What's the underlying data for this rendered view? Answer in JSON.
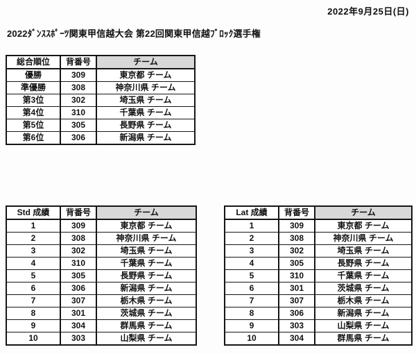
{
  "page": {
    "date": "2022年9月25日(日)",
    "title": "2022ﾀﾞﾝｽｽﾎﾟｰﾂ関東甲信越大会 第22回関東甲信越ﾌﾞﾛｯｸ選手権"
  },
  "colors": {
    "header_shade": "#d8d8d8",
    "border": "#151515",
    "background": "#fdfdfd"
  },
  "tables": {
    "overall": {
      "headers": [
        "総合順位",
        "背番号",
        "チーム"
      ],
      "rows": [
        {
          "rank": "優勝",
          "bib": "309",
          "team": "東京都 チーム"
        },
        {
          "rank": "準優勝",
          "bib": "308",
          "team": "神奈川県 チーム"
        },
        {
          "rank": "第3位",
          "bib": "302",
          "team": "埼玉県 チーム"
        },
        {
          "rank": "第4位",
          "bib": "310",
          "team": "千葉県 チーム"
        },
        {
          "rank": "第5位",
          "bib": "305",
          "team": "長野県 チーム"
        },
        {
          "rank": "第6位",
          "bib": "306",
          "team": "新潟県 チーム"
        }
      ]
    },
    "std": {
      "headers": [
        "Std 成績",
        "背番号",
        "チーム"
      ],
      "rows": [
        {
          "rank": "1",
          "bib": "309",
          "team": "東京都 チーム"
        },
        {
          "rank": "2",
          "bib": "308",
          "team": "神奈川県 チーム"
        },
        {
          "rank": "3",
          "bib": "302",
          "team": "埼玉県 チーム"
        },
        {
          "rank": "4",
          "bib": "310",
          "team": "千葉県 チーム"
        },
        {
          "rank": "5",
          "bib": "305",
          "team": "長野県 チーム"
        },
        {
          "rank": "6",
          "bib": "306",
          "team": "新潟県 チーム"
        },
        {
          "rank": "7",
          "bib": "307",
          "team": "栃木県 チーム"
        },
        {
          "rank": "8",
          "bib": "301",
          "team": "茨城県 チーム"
        },
        {
          "rank": "9",
          "bib": "304",
          "team": "群馬県 チーム"
        },
        {
          "rank": "10",
          "bib": "303",
          "team": "山梨県 チーム"
        }
      ]
    },
    "lat": {
      "headers": [
        "Lat 成績",
        "背番号",
        "チーム"
      ],
      "rows": [
        {
          "rank": "1",
          "bib": "309",
          "team": "東京都 チーム"
        },
        {
          "rank": "2",
          "bib": "308",
          "team": "神奈川県 チーム"
        },
        {
          "rank": "3",
          "bib": "302",
          "team": "埼玉県 チーム"
        },
        {
          "rank": "4",
          "bib": "305",
          "team": "長野県 チーム"
        },
        {
          "rank": "5",
          "bib": "310",
          "team": "千葉県 チーム"
        },
        {
          "rank": "6",
          "bib": "301",
          "team": "茨城県 チーム"
        },
        {
          "rank": "7",
          "bib": "307",
          "team": "栃木県 チーム"
        },
        {
          "rank": "8",
          "bib": "306",
          "team": "新潟県 チーム"
        },
        {
          "rank": "9",
          "bib": "303",
          "team": "山梨県 チーム"
        },
        {
          "rank": "10",
          "bib": "304",
          "team": "群馬県 チーム"
        }
      ]
    }
  }
}
